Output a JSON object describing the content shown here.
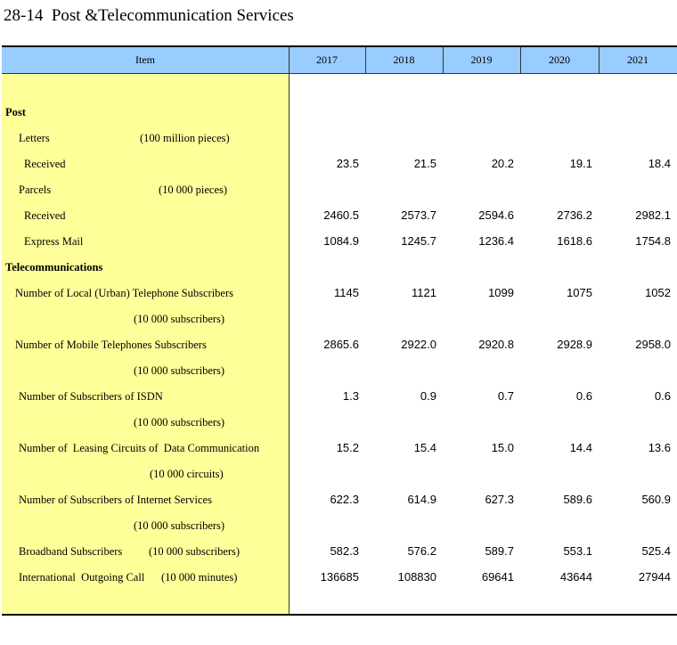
{
  "title": "28-14  Post &Telecommunication Services",
  "header": {
    "item": "Item",
    "columns": [
      "2017",
      "2018",
      "2019",
      "2020",
      "2021"
    ]
  },
  "rows": [
    {
      "label": "Post"
    },
    {
      "label": "Letters",
      "unit": "(100 million pieces)"
    },
    {
      "label": "Received",
      "values": [
        "23.5",
        "21.5",
        "20.2",
        "19.1",
        "18.4"
      ]
    },
    {
      "label": "Parcels",
      "unit": "(10 000 pieces)"
    },
    {
      "label": "Received",
      "values": [
        "2460.5",
        "2573.7",
        "2594.6",
        "2736.2",
        "2982.1"
      ]
    },
    {
      "label": "Express Mail",
      "values": [
        "1084.9",
        "1245.7",
        "1236.4",
        "1618.6",
        "1754.8"
      ]
    },
    {
      "label": "Telecommunications"
    },
    {
      "label": "Number of Local (Urban) Telephone Subscribers",
      "unit": "(10 000 subscribers)",
      "values": [
        "1145",
        "1121",
        "1099",
        "1075",
        "1052"
      ]
    },
    {
      "label": "Number of Mobile Telephones Subscribers",
      "unit": "(10 000 subscribers)",
      "values": [
        "2865.6",
        "2922.0",
        "2920.8",
        "2928.9",
        "2958.0"
      ]
    },
    {
      "label": "Number of Subscribers of ISDN",
      "unit": "(10 000 subscribers)",
      "values": [
        "1.3",
        "0.9",
        "0.7",
        "0.6",
        "0.6"
      ]
    },
    {
      "label": "Number of  Leasing Circuits of  Data Communication",
      "unit": "(10 000 circuits)",
      "values": [
        "15.2",
        "15.4",
        "15.0",
        "14.4",
        "13.6"
      ]
    },
    {
      "label": "Number of Subscribers of Internet Services",
      "unit": "(10 000 subscribers)",
      "values": [
        "622.3",
        "614.9",
        "627.3",
        "589.6",
        "560.9"
      ]
    },
    {
      "label": "Broadband Subscribers",
      "unit": "(10 000 subscribers)",
      "values": [
        "582.3",
        "576.2",
        "589.7",
        "553.1",
        "525.4"
      ]
    },
    {
      "label": "International  Outgoing Call",
      "unit": "(10 000 minutes)",
      "values": [
        "136685",
        "108830",
        "69641",
        "43644",
        "27944"
      ]
    }
  ]
}
